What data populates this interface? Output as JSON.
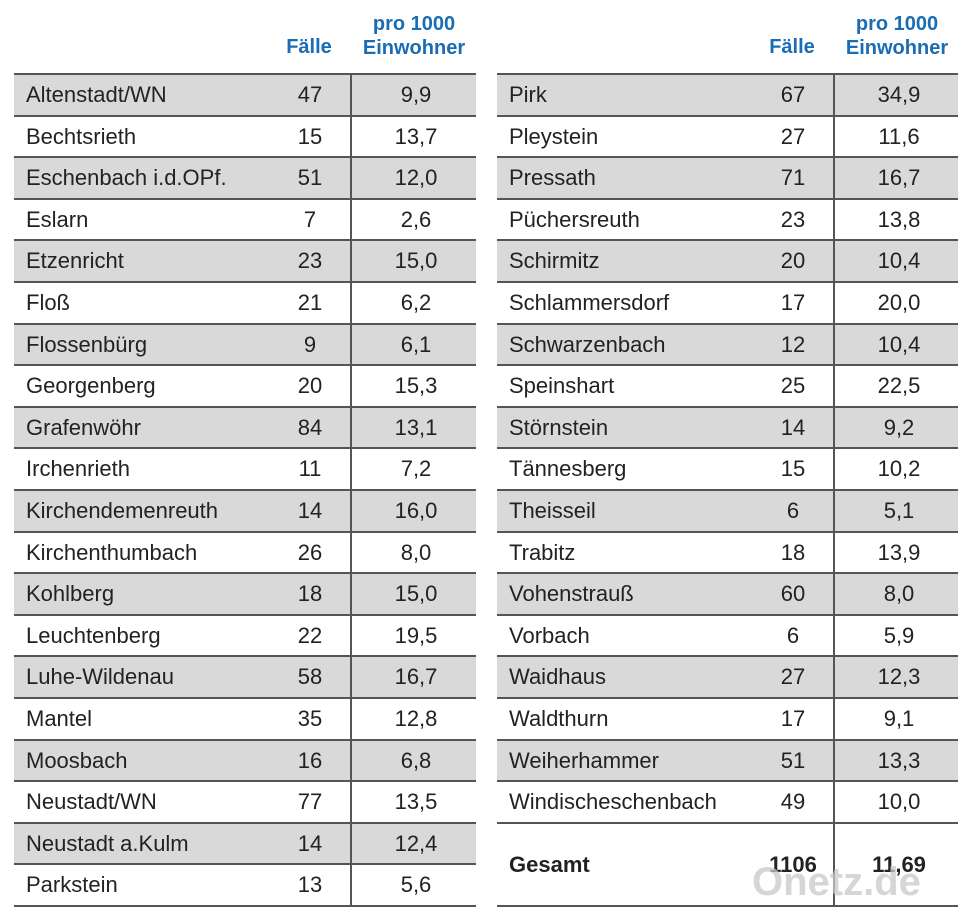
{
  "header": {
    "left": {
      "faelle": "Fälle",
      "pro_line1": "pro 1000",
      "pro_line2": "Einwohner"
    },
    "right": {
      "faelle": "Fälle",
      "pro_line1": "pro 1000",
      "pro_line2": "Einwohner"
    }
  },
  "left_rows": [
    [
      "Altenstadt/WN",
      "47",
      "9,9"
    ],
    [
      "Bechtsrieth",
      "15",
      "13,7"
    ],
    [
      "Eschenbach i.d.OPf.",
      "51",
      "12,0"
    ],
    [
      "Eslarn",
      "7",
      "2,6"
    ],
    [
      "Etzenricht",
      "23",
      "15,0"
    ],
    [
      "Floß",
      "21",
      "6,2"
    ],
    [
      "Flossenbürg",
      "9",
      "6,1"
    ],
    [
      "Georgenberg",
      "20",
      "15,3"
    ],
    [
      "Grafenwöhr",
      "84",
      "13,1"
    ],
    [
      "Irchenrieth",
      "11",
      "7,2"
    ],
    [
      "Kirchendemenreuth",
      "14",
      "16,0"
    ],
    [
      "Kirchenthumbach",
      "26",
      "8,0"
    ],
    [
      "Kohlberg",
      "18",
      "15,0"
    ],
    [
      "Leuchtenberg",
      "22",
      "19,5"
    ],
    [
      "Luhe-Wildenau",
      "58",
      "16,7"
    ],
    [
      "Mantel",
      "35",
      "12,8"
    ],
    [
      "Moosbach",
      "16",
      "6,8"
    ],
    [
      "Neustadt/WN",
      "77",
      "13,5"
    ],
    [
      "Neustadt a.Kulm",
      "14",
      "12,4"
    ],
    [
      "Parkstein",
      "13",
      "5,6"
    ]
  ],
  "right_rows": [
    [
      "Pirk",
      "67",
      "34,9"
    ],
    [
      "Pleystein",
      "27",
      "11,6"
    ],
    [
      "Pressath",
      "71",
      "16,7"
    ],
    [
      "Püchersreuth",
      "23",
      "13,8"
    ],
    [
      "Schirmitz",
      "20",
      "10,4"
    ],
    [
      "Schlammersdorf",
      "17",
      "20,0"
    ],
    [
      "Schwarzenbach",
      "12",
      "10,4"
    ],
    [
      "Speinshart",
      "25",
      "22,5"
    ],
    [
      "Störnstein",
      "14",
      "9,2"
    ],
    [
      "Tännesberg",
      "15",
      "10,2"
    ],
    [
      "Theisseil",
      "6",
      "5,1"
    ],
    [
      "Trabitz",
      "18",
      "13,9"
    ],
    [
      "Vohenstrauß",
      "60",
      "8,0"
    ],
    [
      "Vorbach",
      "6",
      "5,9"
    ],
    [
      "Waidhaus",
      "27",
      "12,3"
    ],
    [
      "Waldthurn",
      "17",
      "9,1"
    ],
    [
      "Weiherhammer",
      "51",
      "13,3"
    ],
    [
      "Windischeschenbach",
      "49",
      "10,0"
    ]
  ],
  "total": {
    "label": "Gesamt",
    "faelle": "1106",
    "pro": "11,69"
  },
  "watermark": "Onetz.de"
}
